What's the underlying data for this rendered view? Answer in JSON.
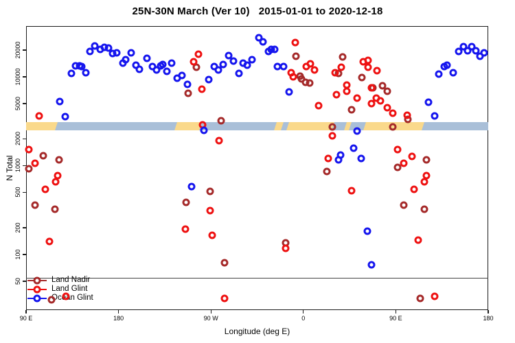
{
  "title": "25N-30N March (Ver 10)   2015-01-01 to 2020-12-18",
  "chart_data": {
    "type": "scatter",
    "title": "25N-30N March (Ver 10)   2015-01-01 to 2020-12-18",
    "xlabel": "Longitude (deg E)",
    "ylabel": "N Total",
    "x_scale": "linear",
    "y_scale": "log10",
    "xlim": [
      90,
      540
    ],
    "ylim": [
      23.7,
      37200
    ],
    "grid": false,
    "x_ticks": [
      {
        "value": 90,
        "label": "90 E"
      },
      {
        "value": 180,
        "label": "180"
      },
      {
        "value": 270,
        "label": "90 W"
      },
      {
        "value": 360,
        "label": "0"
      },
      {
        "value": 450,
        "label": "90 E"
      },
      {
        "value": 540,
        "label": "180"
      }
    ],
    "y_ticks": [
      {
        "value": 20000,
        "label": "20000"
      },
      {
        "value": 10000,
        "label": "10000"
      },
      {
        "value": 5000,
        "label": "5000"
      },
      {
        "value": 2000,
        "label": "2000"
      },
      {
        "value": 1000,
        "label": "1000"
      },
      {
        "value": 500,
        "label": "500"
      },
      {
        "value": 200,
        "label": "200"
      },
      {
        "value": 100,
        "label": "100"
      },
      {
        "value": 50,
        "label": "50"
      }
    ],
    "legend_position": "bottom-left",
    "map_band": {
      "description": "land/ocean strip of the 25N-30N latitude belt",
      "value_range": [
        2500,
        3100
      ],
      "land_color": "#FAD98B",
      "ocean_color": "#A9BFD8",
      "segments": [
        {
          "from": 90,
          "to": 121,
          "type": "land"
        },
        {
          "from": 121,
          "to": 237,
          "type": "ocean"
        },
        {
          "from": 237,
          "to": 261,
          "type": "land"
        },
        {
          "from": 261,
          "to": 334,
          "type": "ocean"
        },
        {
          "from": 334,
          "to": 341,
          "type": "land"
        },
        {
          "from": 341,
          "to": 346,
          "type": "ocean"
        },
        {
          "from": 346,
          "to": 390,
          "type": "land"
        },
        {
          "from": 390,
          "to": 402,
          "type": "ocean"
        },
        {
          "from": 402,
          "to": 407,
          "type": "land"
        },
        {
          "from": 407,
          "to": 421,
          "type": "ocean"
        },
        {
          "from": 421,
          "to": 478,
          "type": "land"
        },
        {
          "from": 478,
          "to": 540,
          "type": "ocean"
        }
      ]
    },
    "series": [
      {
        "name": "Land Nadir",
        "color": "#A52A2A",
        "points": [
          [
            107,
            1290
          ],
          [
            93,
            923
          ],
          [
            122,
            1160
          ],
          [
            99,
            360
          ],
          [
            118,
            323
          ],
          [
            115,
            31
          ],
          [
            256,
            12800
          ],
          [
            248,
            6530
          ],
          [
            280,
            3200
          ],
          [
            269,
            513
          ],
          [
            246,
            386
          ],
          [
            283,
            81
          ],
          [
            353,
            17000
          ],
          [
            357,
            10200
          ],
          [
            358,
            9500
          ],
          [
            362,
            8680
          ],
          [
            366,
            8520
          ],
          [
            394,
            10900
          ],
          [
            398,
            16700
          ],
          [
            417,
            9830
          ],
          [
            407,
            4260
          ],
          [
            388,
            2730
          ],
          [
            383,
            860
          ],
          [
            343,
            135
          ],
          [
            428,
            7520
          ],
          [
            437,
            7940
          ],
          [
            442,
            6880
          ],
          [
            462,
            3320
          ],
          [
            447,
            2730
          ],
          [
            480,
            1160
          ],
          [
            452,
            957
          ],
          [
            458,
            360
          ],
          [
            478,
            323
          ],
          [
            474,
            32
          ]
        ]
      },
      {
        "name": "Land Glint",
        "color": "#EE1111",
        "points": [
          [
            103,
            3630
          ],
          [
            93,
            1520
          ],
          [
            99,
            1060
          ],
          [
            121,
            773
          ],
          [
            119,
            658
          ],
          [
            109,
            541
          ],
          [
            113,
            140
          ],
          [
            129,
            34
          ],
          [
            258,
            18000
          ],
          [
            253,
            14800
          ],
          [
            261,
            7260
          ],
          [
            262,
            2880
          ],
          [
            278,
            1910
          ],
          [
            269,
            312
          ],
          [
            245,
            193
          ],
          [
            271,
            164
          ],
          [
            283,
            32
          ],
          [
            352,
            24300
          ],
          [
            348,
            11100
          ],
          [
            350,
            10000
          ],
          [
            363,
            13100
          ],
          [
            367,
            14000
          ],
          [
            371,
            12000
          ],
          [
            384,
            1210
          ],
          [
            391,
            11100
          ],
          [
            397,
            12800
          ],
          [
            402,
            8070
          ],
          [
            402,
            6880
          ],
          [
            392,
            6300
          ],
          [
            412,
            5760
          ],
          [
            418,
            14800
          ],
          [
            423,
            15300
          ],
          [
            423,
            12800
          ],
          [
            426,
            7520
          ],
          [
            426,
            5000
          ],
          [
            388,
            2170
          ],
          [
            375,
            4740
          ],
          [
            407,
            522
          ],
          [
            343,
            117
          ],
          [
            432,
            11700
          ],
          [
            431,
            5760
          ],
          [
            435,
            5370
          ],
          [
            442,
            4500
          ],
          [
            447,
            3900
          ],
          [
            461,
            3700
          ],
          [
            452,
            1520
          ],
          [
            466,
            1270
          ],
          [
            458,
            1060
          ],
          [
            480,
            773
          ],
          [
            478,
            658
          ],
          [
            468,
            541
          ],
          [
            472,
            145
          ],
          [
            488,
            34
          ]
        ]
      },
      {
        "name": "Ocean Glint",
        "color": "#1515EE",
        "points": [
          [
            152,
            19300
          ],
          [
            157,
            22300
          ],
          [
            162,
            20400
          ],
          [
            166,
            21500
          ],
          [
            170,
            21100
          ],
          [
            174,
            18300
          ],
          [
            178,
            18600
          ],
          [
            184,
            14300
          ],
          [
            187,
            15600
          ],
          [
            192,
            18600
          ],
          [
            197,
            13500
          ],
          [
            200,
            12200
          ],
          [
            134,
            10900
          ],
          [
            138,
            13300
          ],
          [
            142,
            13300
          ],
          [
            144,
            13100
          ],
          [
            148,
            11100
          ],
          [
            123,
            5270
          ],
          [
            128,
            3570
          ],
          [
            208,
            16200
          ],
          [
            213,
            13100
          ],
          [
            217,
            12000
          ],
          [
            221,
            13300
          ],
          [
            223,
            13800
          ],
          [
            227,
            11500
          ],
          [
            232,
            14300
          ],
          [
            237,
            9660
          ],
          [
            242,
            10400
          ],
          [
            247,
            8220
          ],
          [
            268,
            9310
          ],
          [
            273,
            13100
          ],
          [
            277,
            12000
          ],
          [
            282,
            13800
          ],
          [
            287,
            17400
          ],
          [
            292,
            15100
          ],
          [
            297,
            10900
          ],
          [
            301,
            14300
          ],
          [
            305,
            13500
          ],
          [
            310,
            15600
          ],
          [
            317,
            27600
          ],
          [
            321,
            24800
          ],
          [
            326,
            19300
          ],
          [
            329,
            20400
          ],
          [
            332,
            20400
          ],
          [
            335,
            13100
          ],
          [
            341,
            13100
          ],
          [
            346,
            6760
          ],
          [
            263,
            2500
          ],
          [
            251,
            582
          ],
          [
            412,
            2460
          ],
          [
            394,
            1160
          ],
          [
            396,
            1320
          ],
          [
            409,
            1570
          ],
          [
            416,
            1210
          ],
          [
            422,
            183
          ],
          [
            426,
            77
          ],
          [
            482,
            5180
          ],
          [
            488,
            3630
          ],
          [
            492,
            10700
          ],
          [
            497,
            13100
          ],
          [
            500,
            13500
          ],
          [
            506,
            11100
          ],
          [
            511,
            19300
          ],
          [
            516,
            21900
          ],
          [
            520,
            19600
          ],
          [
            524,
            21900
          ],
          [
            528,
            19600
          ],
          [
            532,
            17100
          ],
          [
            536,
            18600
          ]
        ]
      }
    ]
  }
}
